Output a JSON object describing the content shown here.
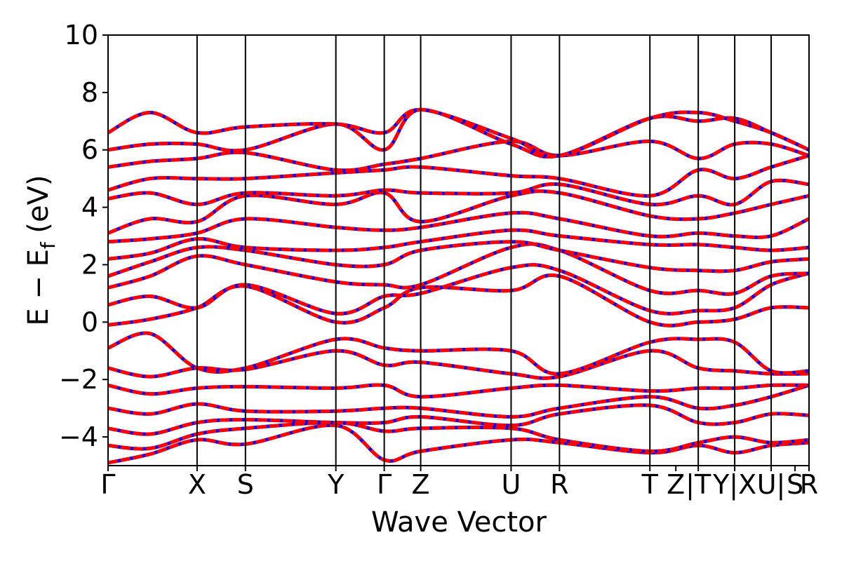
{
  "chart_data": {
    "type": "line",
    "xlabel": "Wave Vector",
    "ylabel": "E − E",
    "ylabel_subscript": "f",
    "ylabel_unit": " (eV)",
    "ylim": [
      -5,
      10
    ],
    "y_ticks": [
      -4,
      -2,
      0,
      2,
      4,
      6,
      8,
      10
    ],
    "y_tick_labels": [
      "−4",
      "−2",
      "0",
      "2",
      "4",
      "6",
      "8",
      "10"
    ],
    "grid": false,
    "legend": "none",
    "high_symmetry_points": [
      {
        "label": "Γ",
        "k": 0.0
      },
      {
        "label": "X",
        "k": 0.127
      },
      {
        "label": "S",
        "k": 0.196
      },
      {
        "label": "Y",
        "k": 0.325
      },
      {
        "label": "Γ",
        "k": 0.394
      },
      {
        "label": "Z",
        "k": 0.446
      },
      {
        "label": "U",
        "k": 0.575
      },
      {
        "label": "R",
        "k": 0.644
      },
      {
        "label": "T",
        "k": 0.773
      },
      {
        "label": "Z",
        "k": 0.81
      },
      {
        "label": "|T",
        "k": 0.842
      },
      {
        "label": "Y|X",
        "k": 0.894
      },
      {
        "label": "U|",
        "k": 0.946
      },
      {
        "label": "S",
        "k": 0.98
      },
      {
        "label": "R",
        "k": 1.0
      }
    ],
    "separators": [
      0.127,
      0.196,
      0.325,
      0.394,
      0.446,
      0.575,
      0.644,
      0.773,
      0.842,
      0.894,
      0.946
    ],
    "series": [
      {
        "color": "#0000ff",
        "style": "solid"
      },
      {
        "color": "#ff0000",
        "style": "dashed"
      }
    ],
    "bands": [
      [
        [
          0.0,
          -4.9
        ],
        [
          0.06,
          -4.6
        ],
        [
          0.127,
          -4.1
        ],
        [
          0.196,
          -4.25
        ],
        [
          0.325,
          -3.6
        ],
        [
          0.394,
          -4.8
        ],
        [
          0.446,
          -4.5
        ],
        [
          0.575,
          -4.1
        ],
        [
          0.644,
          -4.2
        ],
        [
          0.773,
          -4.55
        ],
        [
          0.842,
          -4.3
        ],
        [
          0.894,
          -4.55
        ],
        [
          0.946,
          -4.3
        ],
        [
          1.0,
          -4.2
        ]
      ],
      [
        [
          0.0,
          -4.3
        ],
        [
          0.06,
          -4.4
        ],
        [
          0.127,
          -3.9
        ],
        [
          0.196,
          -3.7
        ],
        [
          0.325,
          -3.5
        ],
        [
          0.394,
          -3.8
        ],
        [
          0.446,
          -3.7
        ],
        [
          0.575,
          -3.7
        ],
        [
          0.644,
          -4.1
        ],
        [
          0.773,
          -4.5
        ],
        [
          0.842,
          -4.2
        ],
        [
          0.894,
          -4.0
        ],
        [
          0.946,
          -4.2
        ],
        [
          1.0,
          -4.1
        ]
      ],
      [
        [
          0.0,
          -3.7
        ],
        [
          0.06,
          -3.9
        ],
        [
          0.127,
          -3.5
        ],
        [
          0.196,
          -3.4
        ],
        [
          0.325,
          -3.5
        ],
        [
          0.394,
          -3.5
        ],
        [
          0.446,
          -3.3
        ],
        [
          0.575,
          -3.6
        ],
        [
          0.644,
          -3.2
        ],
        [
          0.773,
          -2.9
        ],
        [
          0.842,
          -3.5
        ],
        [
          0.894,
          -3.5
        ],
        [
          0.946,
          -3.2
        ],
        [
          1.0,
          -3.25
        ]
      ],
      [
        [
          0.0,
          -3.0
        ],
        [
          0.06,
          -3.2
        ],
        [
          0.127,
          -2.85
        ],
        [
          0.196,
          -3.1
        ],
        [
          0.325,
          -3.1
        ],
        [
          0.394,
          -3.0
        ],
        [
          0.446,
          -3.0
        ],
        [
          0.575,
          -3.3
        ],
        [
          0.644,
          -3.0
        ],
        [
          0.773,
          -2.6
        ],
        [
          0.842,
          -3.0
        ],
        [
          0.894,
          -2.9
        ],
        [
          0.946,
          -2.6
        ],
        [
          1.0,
          -2.2
        ]
      ],
      [
        [
          0.0,
          -2.2
        ],
        [
          0.06,
          -2.5
        ],
        [
          0.127,
          -2.3
        ],
        [
          0.196,
          -2.25
        ],
        [
          0.325,
          -2.3
        ],
        [
          0.394,
          -2.2
        ],
        [
          0.446,
          -2.6
        ],
        [
          0.575,
          -2.3
        ],
        [
          0.644,
          -2.2
        ],
        [
          0.773,
          -2.4
        ],
        [
          0.842,
          -2.3
        ],
        [
          0.894,
          -2.3
        ],
        [
          0.946,
          -2.2
        ],
        [
          1.0,
          -2.2
        ]
      ],
      [
        [
          0.0,
          -1.6
        ],
        [
          0.06,
          -1.9
        ],
        [
          0.127,
          -1.6
        ],
        [
          0.196,
          -1.65
        ],
        [
          0.325,
          -1.0
        ],
        [
          0.394,
          -1.5
        ],
        [
          0.446,
          -1.4
        ],
        [
          0.575,
          -1.8
        ],
        [
          0.644,
          -1.9
        ],
        [
          0.773,
          -1.0
        ],
        [
          0.842,
          -1.6
        ],
        [
          0.894,
          -1.7
        ],
        [
          0.946,
          -1.8
        ],
        [
          1.0,
          -1.8
        ]
      ],
      [
        [
          0.0,
          -0.9
        ],
        [
          0.06,
          -0.4
        ],
        [
          0.127,
          -1.6
        ],
        [
          0.196,
          -1.6
        ],
        [
          0.325,
          -0.6
        ],
        [
          0.394,
          -0.9
        ],
        [
          0.446,
          -1.0
        ],
        [
          0.575,
          -1.0
        ],
        [
          0.644,
          -1.8
        ],
        [
          0.773,
          -0.7
        ],
        [
          0.842,
          -0.6
        ],
        [
          0.894,
          -0.7
        ],
        [
          0.946,
          -1.7
        ],
        [
          1.0,
          -1.7
        ]
      ],
      [
        [
          0.0,
          -0.1
        ],
        [
          0.06,
          0.1
        ],
        [
          0.127,
          0.5
        ],
        [
          0.196,
          1.25
        ],
        [
          0.325,
          0.0
        ],
        [
          0.394,
          0.5
        ],
        [
          0.446,
          1.2
        ],
        [
          0.575,
          1.1
        ],
        [
          0.644,
          1.6
        ],
        [
          0.773,
          0.0
        ],
        [
          0.842,
          0.0
        ],
        [
          0.894,
          0.1
        ],
        [
          0.946,
          0.5
        ],
        [
          1.0,
          0.5
        ]
      ],
      [
        [
          0.0,
          0.6
        ],
        [
          0.06,
          0.9
        ],
        [
          0.127,
          0.5
        ],
        [
          0.196,
          1.3
        ],
        [
          0.325,
          0.3
        ],
        [
          0.394,
          0.9
        ],
        [
          0.446,
          1.0
        ],
        [
          0.575,
          1.9
        ],
        [
          0.644,
          1.8
        ],
        [
          0.773,
          0.4
        ],
        [
          0.842,
          0.4
        ],
        [
          0.894,
          0.5
        ],
        [
          0.946,
          1.3
        ],
        [
          1.0,
          1.7
        ]
      ],
      [
        [
          0.0,
          1.2
        ],
        [
          0.06,
          1.6
        ],
        [
          0.127,
          2.3
        ],
        [
          0.196,
          2.0
        ],
        [
          0.325,
          1.4
        ],
        [
          0.394,
          1.3
        ],
        [
          0.446,
          1.3
        ],
        [
          0.575,
          2.6
        ],
        [
          0.644,
          2.5
        ],
        [
          0.773,
          1.1
        ],
        [
          0.842,
          1.1
        ],
        [
          0.894,
          1.0
        ],
        [
          0.946,
          1.6
        ],
        [
          1.0,
          1.7
        ]
      ],
      [
        [
          0.0,
          1.6
        ],
        [
          0.06,
          2.1
        ],
        [
          0.127,
          2.6
        ],
        [
          0.196,
          2.5
        ],
        [
          0.325,
          2.0
        ],
        [
          0.394,
          2.0
        ],
        [
          0.446,
          2.5
        ],
        [
          0.575,
          2.8
        ],
        [
          0.644,
          2.5
        ],
        [
          0.773,
          1.9
        ],
        [
          0.842,
          1.8
        ],
        [
          0.894,
          1.8
        ],
        [
          0.946,
          2.1
        ],
        [
          1.0,
          2.2
        ]
      ],
      [
        [
          0.0,
          2.2
        ],
        [
          0.06,
          2.4
        ],
        [
          0.127,
          2.9
        ],
        [
          0.196,
          2.6
        ],
        [
          0.325,
          2.5
        ],
        [
          0.394,
          2.6
        ],
        [
          0.446,
          2.8
        ],
        [
          0.575,
          3.2
        ],
        [
          0.644,
          3.0
        ],
        [
          0.773,
          2.7
        ],
        [
          0.842,
          2.7
        ],
        [
          0.894,
          2.6
        ],
        [
          0.946,
          2.5
        ],
        [
          1.0,
          2.6
        ]
      ],
      [
        [
          0.0,
          2.8
        ],
        [
          0.06,
          2.9
        ],
        [
          0.127,
          3.1
        ],
        [
          0.196,
          3.6
        ],
        [
          0.325,
          3.3
        ],
        [
          0.394,
          3.2
        ],
        [
          0.446,
          3.3
        ],
        [
          0.575,
          3.8
        ],
        [
          0.644,
          3.6
        ],
        [
          0.773,
          3.0
        ],
        [
          0.842,
          3.1
        ],
        [
          0.894,
          3.0
        ],
        [
          0.946,
          3.0
        ],
        [
          1.0,
          3.6
        ]
      ],
      [
        [
          0.0,
          3.1
        ],
        [
          0.06,
          3.6
        ],
        [
          0.127,
          3.5
        ],
        [
          0.196,
          4.4
        ],
        [
          0.325,
          4.1
        ],
        [
          0.394,
          4.5
        ],
        [
          0.446,
          3.5
        ],
        [
          0.575,
          4.4
        ],
        [
          0.644,
          4.5
        ],
        [
          0.773,
          3.7
        ],
        [
          0.842,
          3.6
        ],
        [
          0.894,
          3.8
        ],
        [
          0.946,
          4.1
        ],
        [
          1.0,
          4.4
        ]
      ],
      [
        [
          0.0,
          4.3
        ],
        [
          0.06,
          4.5
        ],
        [
          0.127,
          4.1
        ],
        [
          0.196,
          4.5
        ],
        [
          0.325,
          4.4
        ],
        [
          0.394,
          4.6
        ],
        [
          0.446,
          4.5
        ],
        [
          0.575,
          4.5
        ],
        [
          0.644,
          4.8
        ],
        [
          0.773,
          4.1
        ],
        [
          0.842,
          4.4
        ],
        [
          0.894,
          4.1
        ],
        [
          0.946,
          4.9
        ],
        [
          1.0,
          4.8
        ]
      ],
      [
        [
          0.0,
          4.6
        ],
        [
          0.06,
          5.0
        ],
        [
          0.127,
          5.0
        ],
        [
          0.196,
          5.0
        ],
        [
          0.325,
          5.2
        ],
        [
          0.394,
          5.3
        ],
        [
          0.446,
          5.4
        ],
        [
          0.575,
          5.1
        ],
        [
          0.644,
          5.0
        ],
        [
          0.773,
          4.4
        ],
        [
          0.842,
          5.3
        ],
        [
          0.894,
          5.0
        ],
        [
          0.946,
          5.4
        ],
        [
          1.0,
          5.8
        ]
      ],
      [
        [
          0.0,
          5.4
        ],
        [
          0.06,
          5.6
        ],
        [
          0.127,
          5.7
        ],
        [
          0.196,
          5.9
        ],
        [
          0.325,
          5.3
        ],
        [
          0.394,
          5.5
        ],
        [
          0.446,
          5.7
        ],
        [
          0.575,
          6.3
        ],
        [
          0.644,
          5.8
        ],
        [
          0.773,
          6.3
        ],
        [
          0.842,
          5.7
        ],
        [
          0.894,
          6.2
        ],
        [
          0.946,
          6.2
        ],
        [
          1.0,
          5.8
        ]
      ],
      [
        [
          0.0,
          6.0
        ],
        [
          0.06,
          6.2
        ],
        [
          0.127,
          6.2
        ],
        [
          0.196,
          6.0
        ],
        [
          0.325,
          6.9
        ],
        [
          0.394,
          6.0
        ],
        [
          0.446,
          7.4
        ],
        [
          0.575,
          6.2
        ],
        [
          0.644,
          5.8
        ],
        [
          0.773,
          7.1
        ],
        [
          0.842,
          7.0
        ],
        [
          0.894,
          7.1
        ],
        [
          0.946,
          6.6
        ],
        [
          1.0,
          6.0
        ]
      ],
      [
        [
          0.0,
          6.6
        ],
        [
          0.06,
          7.3
        ],
        [
          0.127,
          6.6
        ],
        [
          0.196,
          6.8
        ],
        [
          0.325,
          6.9
        ],
        [
          0.394,
          6.6
        ],
        [
          0.446,
          7.4
        ],
        [
          0.575,
          6.4
        ],
        [
          0.644,
          5.8
        ],
        [
          0.773,
          7.1
        ],
        [
          0.842,
          7.3
        ],
        [
          0.894,
          7.0
        ],
        [
          0.946,
          6.6
        ],
        [
          1.0,
          6.0
        ]
      ]
    ]
  }
}
